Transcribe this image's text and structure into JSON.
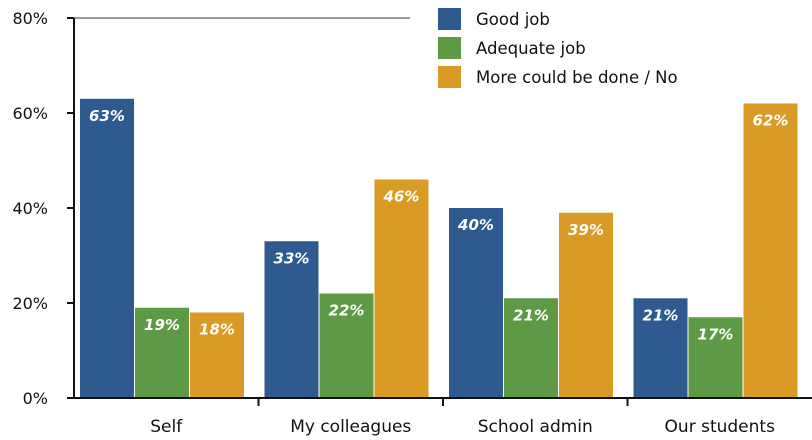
{
  "chart_data": {
    "type": "bar",
    "categories": [
      "Self",
      "My colleagues",
      "School admin",
      "Our students"
    ],
    "series": [
      {
        "name": "Good job",
        "color": "#2e5a8f",
        "values": [
          63,
          33,
          40,
          21
        ],
        "labels": [
          "63%",
          "33%",
          "40%",
          "21%"
        ]
      },
      {
        "name": "Adequate job",
        "color": "#5e9a45",
        "values": [
          19,
          22,
          21,
          17
        ],
        "labels": [
          "19%",
          "22%",
          "21%",
          "17%"
        ]
      },
      {
        "name": "More could be done / No",
        "color": "#d99a26",
        "values": [
          18,
          46,
          39,
          62
        ],
        "labels": [
          "18%",
          "46%",
          "39%",
          "62%"
        ]
      }
    ],
    "ylim": [
      0,
      80
    ],
    "yticks": [
      0,
      20,
      40,
      60,
      80
    ],
    "ytick_labels": [
      "0%",
      "20%",
      "40%",
      "60%",
      "80%"
    ],
    "grid": false,
    "legend": "top-right",
    "title": "",
    "xlabel": "",
    "ylabel": ""
  }
}
